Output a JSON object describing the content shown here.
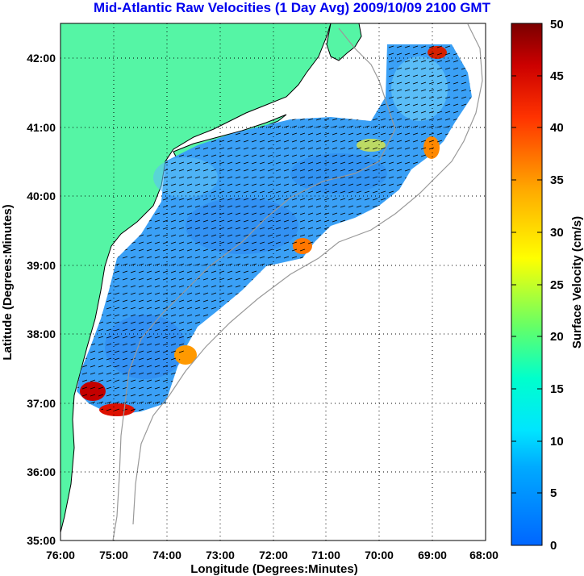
{
  "title": "Mid-Atlantic Raw Velocities (1 Day Avg) 2009/10/09 2100 GMT",
  "map": {
    "x_label": "Longitude (Degrees:Minutes)",
    "y_label": "Latitude (Degrees:Minutes)",
    "x_ticks": [
      "76:00",
      "75:00",
      "74:00",
      "73:00",
      "72:00",
      "71:00",
      "70:00",
      "69:00",
      "68:00"
    ],
    "y_ticks": [
      "35:00",
      "36:00",
      "37:00",
      "38:00",
      "39:00",
      "40:00",
      "41:00",
      "42:00"
    ],
    "lon_range": [
      -76,
      -68
    ],
    "lat_range": [
      35,
      42.5
    ],
    "grid": true,
    "land_color": "#55f5a5",
    "field_color": "#3aa0f6",
    "isobath_color": "#999999"
  },
  "colorbar": {
    "label": "Surface Velocity (cm/s)",
    "ticks": [
      "0",
      "5",
      "10",
      "15",
      "20",
      "25",
      "30",
      "35",
      "40",
      "45",
      "50"
    ],
    "range": [
      0,
      50
    ],
    "colormap": [
      "#0066ff",
      "#00ccff",
      "#00ffcc",
      "#66ff66",
      "#ffff00",
      "#ffaa00",
      "#ff3300",
      "#cc0000",
      "#7a0000"
    ]
  }
}
